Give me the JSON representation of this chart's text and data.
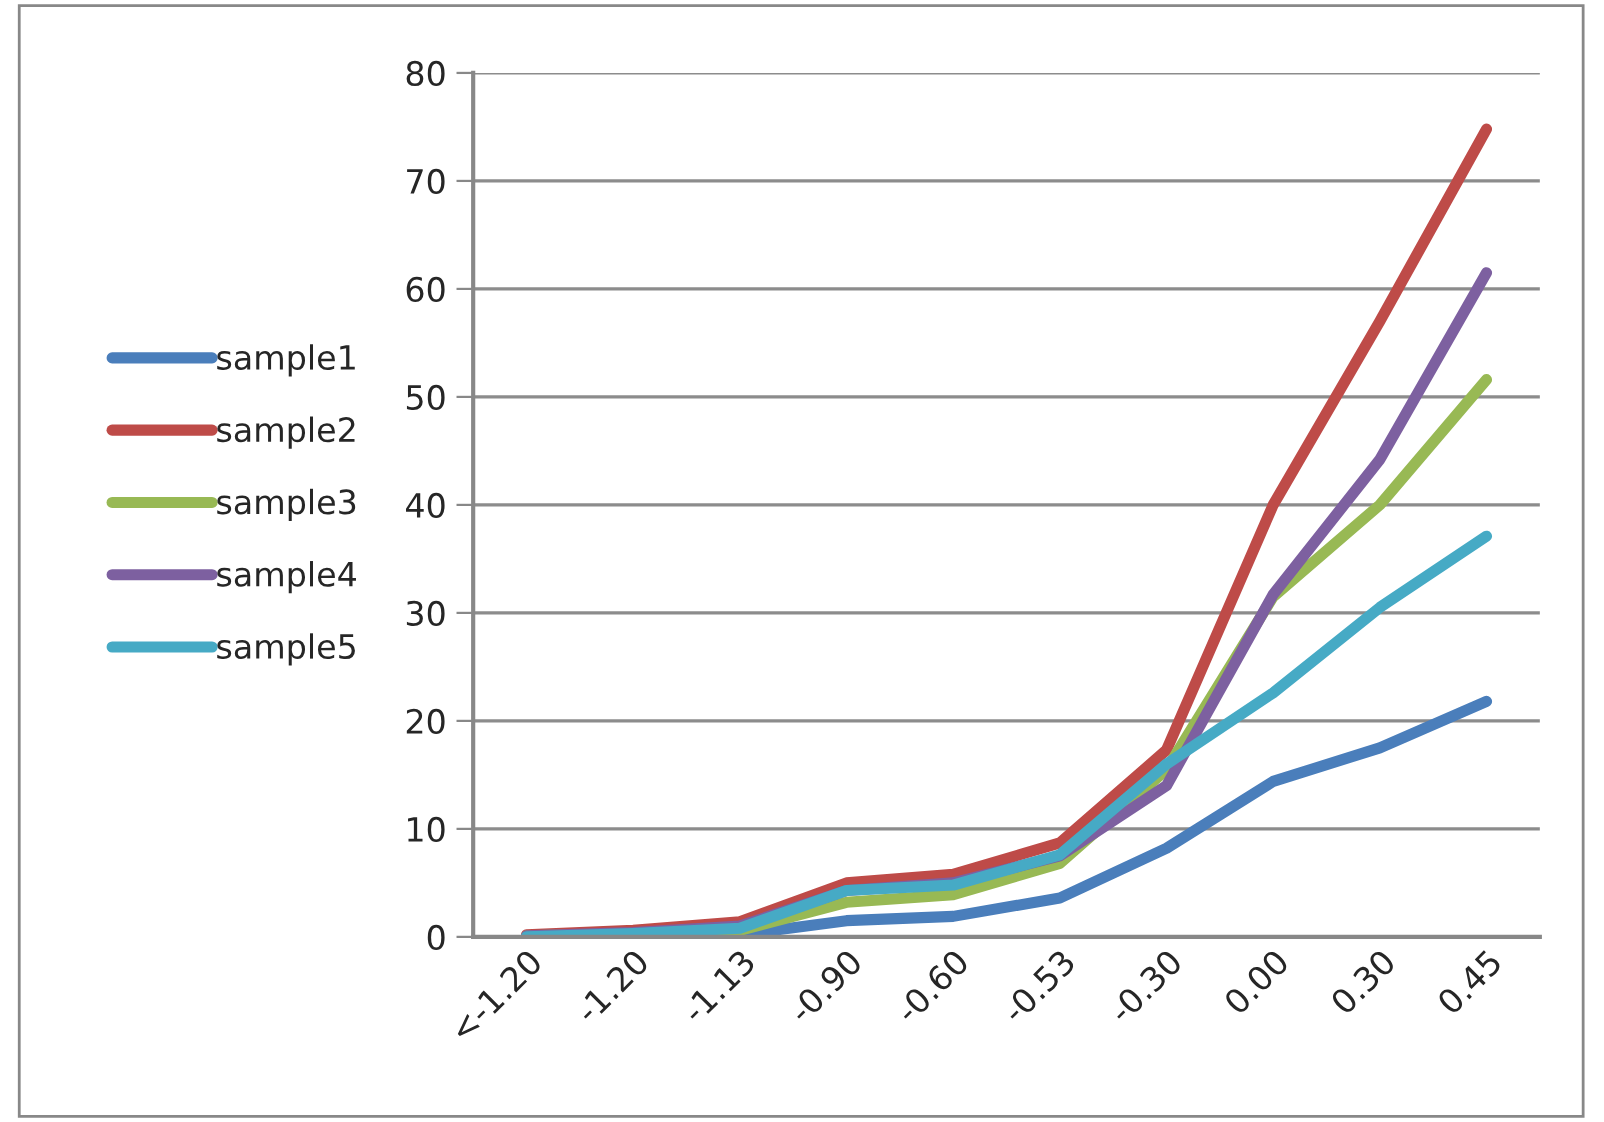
{
  "chart_data": {
    "type": "line",
    "categories": [
      "<-1.20",
      "-1.20",
      "-1.13",
      "-0.90",
      "-0.60",
      "-0.53",
      "-0.30",
      "0.00",
      "0.30",
      "0.45"
    ],
    "series": [
      {
        "name": "sample1",
        "color": "#4a7ebb",
        "values": [
          0,
          0,
          0.2,
          1.5,
          1.9,
          3.6,
          8.2,
          14.4,
          17.5,
          21.8
        ]
      },
      {
        "name": "sample2",
        "color": "#be4b48",
        "values": [
          0.2,
          0.6,
          1.4,
          5,
          5.8,
          8.7,
          17.3,
          40,
          57,
          74.8
        ]
      },
      {
        "name": "sample3",
        "color": "#98b954",
        "values": [
          0.1,
          0.3,
          0.6,
          3.2,
          3.9,
          6.8,
          15.5,
          31.5,
          40,
          51.6
        ]
      },
      {
        "name": "sample4",
        "color": "#7d60a0",
        "values": [
          0.1,
          0.4,
          1.0,
          4.3,
          5.0,
          7.5,
          14,
          31.7,
          44.2,
          61.5
        ]
      },
      {
        "name": "sample5",
        "color": "#46aac5",
        "values": [
          0,
          0.3,
          0.8,
          4.3,
          4.8,
          7.6,
          16,
          22.6,
          30.5,
          37.1
        ]
      }
    ],
    "ylim": [
      0,
      80
    ],
    "yticks": [
      0,
      10,
      20,
      30,
      40,
      50,
      60,
      70,
      80
    ],
    "grid": "y",
    "legend": "left",
    "marker": "none",
    "line_style": "solid"
  }
}
